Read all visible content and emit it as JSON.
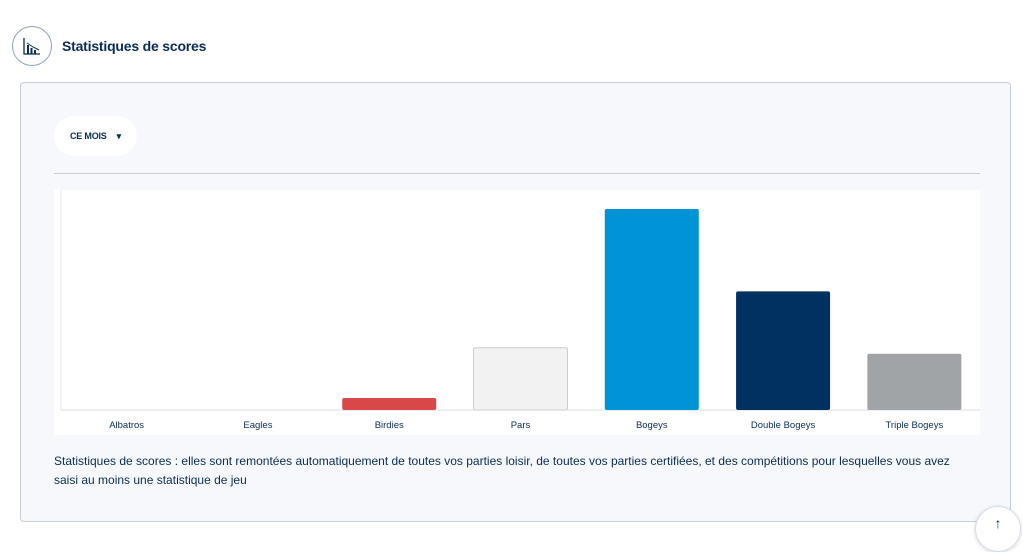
{
  "header": {
    "title": "Statistiques de scores",
    "icon": "bar-chart-icon"
  },
  "filter": {
    "selected": "CE MOIS",
    "chevron": "▾"
  },
  "description": "Statistiques de scores : elles sont remontées automatiquement de toutes vos parties loisir, de toutes vos parties certifiées, et des compétitions pour lesquelles vous avez saisi au moins une statistique de jeu",
  "scroll_top": {
    "glyph": "↑"
  },
  "chart_data": {
    "type": "bar",
    "categories": [
      "Albatros",
      "Eagles",
      "Birdies",
      "Pars",
      "Bogeys",
      "Double Bogeys",
      "Triple Bogeys"
    ],
    "values": [
      0,
      0,
      6,
      31,
      100,
      59,
      28
    ],
    "colors": [
      "#0093d6",
      "#0093d6",
      "#d94848",
      "#f2f2f2",
      "#0093d6",
      "#003160",
      "#a0a4a6"
    ],
    "ylim": [
      0,
      100
    ],
    "grid": false,
    "legend": "none"
  }
}
